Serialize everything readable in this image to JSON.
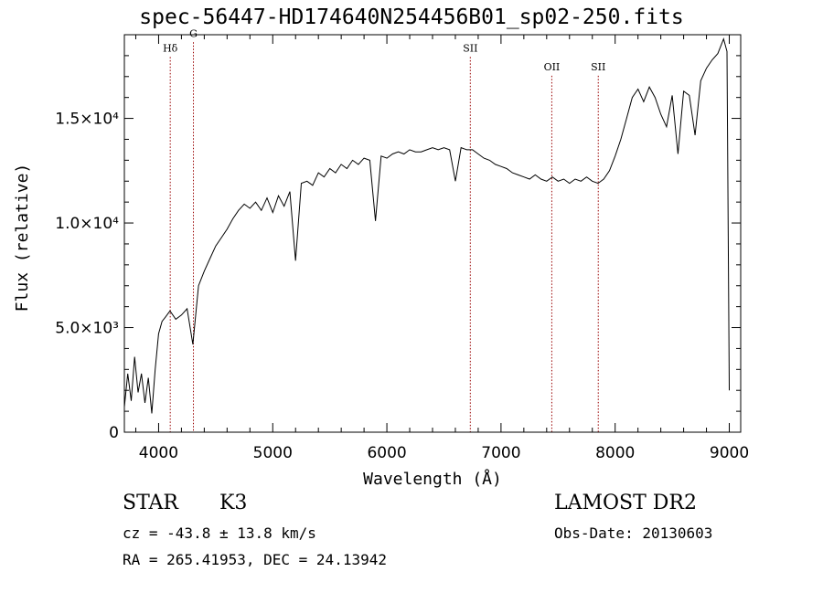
{
  "title": "spec-56447-HD174640N254456B01_sp02-250.fits",
  "info": {
    "class_label": "STAR",
    "subclass": "K3",
    "survey": "LAMOST DR2",
    "cz": "cz = -43.8 ± 13.8 km/s",
    "obs_date": "Obs-Date: 20130603",
    "coords": "RA = 265.41953, DEC =  24.13942"
  },
  "colors": {
    "spectrum": "#000000",
    "line_marker": "#990000",
    "axes": "#000000"
  },
  "chart_data": {
    "type": "line",
    "title": "spec-56447-HD174640N254456B01_sp02-250.fits",
    "xlabel": "Wavelength (Å)",
    "ylabel": "Flux (relative)",
    "xlim": [
      3700,
      9100
    ],
    "ylim": [
      0,
      19000
    ],
    "x_ticks": [
      4000,
      5000,
      6000,
      7000,
      8000,
      9000
    ],
    "x_tick_labels": [
      "4000",
      "5000",
      "6000",
      "7000",
      "8000",
      "9000"
    ],
    "y_ticks": [
      0,
      5000,
      10000,
      15000
    ],
    "y_tick_labels": [
      "0",
      "5.0×10³",
      "1.0×10⁴",
      "1.5×10⁴"
    ],
    "grid": false,
    "legend": "none",
    "line_markers": [
      {
        "label": "Hδ",
        "wavelength": 4102,
        "label_level": 18200
      },
      {
        "label": "G",
        "wavelength": 4305,
        "label_level": 18900
      },
      {
        "label": "SII",
        "wavelength": 6731,
        "label_level": 18200
      },
      {
        "label": "OII",
        "wavelength": 7445,
        "label_level": 17300
      },
      {
        "label": "SII",
        "wavelength": 7852,
        "label_level": 17300
      }
    ],
    "series": [
      {
        "name": "",
        "x": [
          3700,
          3730,
          3760,
          3790,
          3820,
          3850,
          3880,
          3910,
          3940,
          3970,
          4000,
          4030,
          4060,
          4100,
          4150,
          4200,
          4250,
          4300,
          4350,
          4400,
          4450,
          4500,
          4550,
          4600,
          4650,
          4700,
          4750,
          4800,
          4850,
          4900,
          4950,
          5000,
          5050,
          5100,
          5150,
          5200,
          5250,
          5300,
          5350,
          5400,
          5450,
          5500,
          5550,
          5600,
          5650,
          5700,
          5750,
          5800,
          5850,
          5900,
          5950,
          6000,
          6050,
          6100,
          6150,
          6200,
          6250,
          6300,
          6350,
          6400,
          6450,
          6500,
          6550,
          6600,
          6650,
          6700,
          6750,
          6800,
          6850,
          6900,
          6950,
          7000,
          7050,
          7100,
          7150,
          7200,
          7250,
          7300,
          7350,
          7400,
          7450,
          7500,
          7550,
          7600,
          7650,
          7700,
          7750,
          7800,
          7850,
          7900,
          7950,
          8000,
          8050,
          8100,
          8150,
          8200,
          8250,
          8300,
          8350,
          8400,
          8450,
          8500,
          8550,
          8600,
          8650,
          8700,
          8750,
          8800,
          8850,
          8900,
          8950,
          8980,
          9000
        ],
        "y": [
          1200,
          2800,
          1500,
          3600,
          1900,
          2800,
          1400,
          2600,
          900,
          3000,
          4700,
          5300,
          5500,
          5800,
          5400,
          5600,
          5900,
          4200,
          7000,
          7700,
          8300,
          8900,
          9300,
          9700,
          10200,
          10600,
          10900,
          10700,
          11000,
          10600,
          11200,
          10500,
          11300,
          10800,
          11500,
          8200,
          11900,
          12000,
          11800,
          12400,
          12200,
          12600,
          12400,
          12800,
          12600,
          13000,
          12800,
          13100,
          13000,
          10100,
          13200,
          13100,
          13300,
          13400,
          13300,
          13500,
          13400,
          13400,
          13500,
          13600,
          13500,
          13600,
          13500,
          12000,
          13600,
          13500,
          13500,
          13300,
          13100,
          13000,
          12800,
          12700,
          12600,
          12400,
          12300,
          12200,
          12100,
          12300,
          12100,
          12000,
          12200,
          12000,
          12100,
          11900,
          12100,
          12000,
          12200,
          12000,
          11900,
          12100,
          12500,
          13200,
          14000,
          15000,
          16000,
          16400,
          15800,
          16500,
          16000,
          15200,
          14600,
          16100,
          13300,
          16300,
          16100,
          14200,
          16800,
          17400,
          17800,
          18100,
          18800,
          18200,
          2000
        ]
      }
    ]
  }
}
